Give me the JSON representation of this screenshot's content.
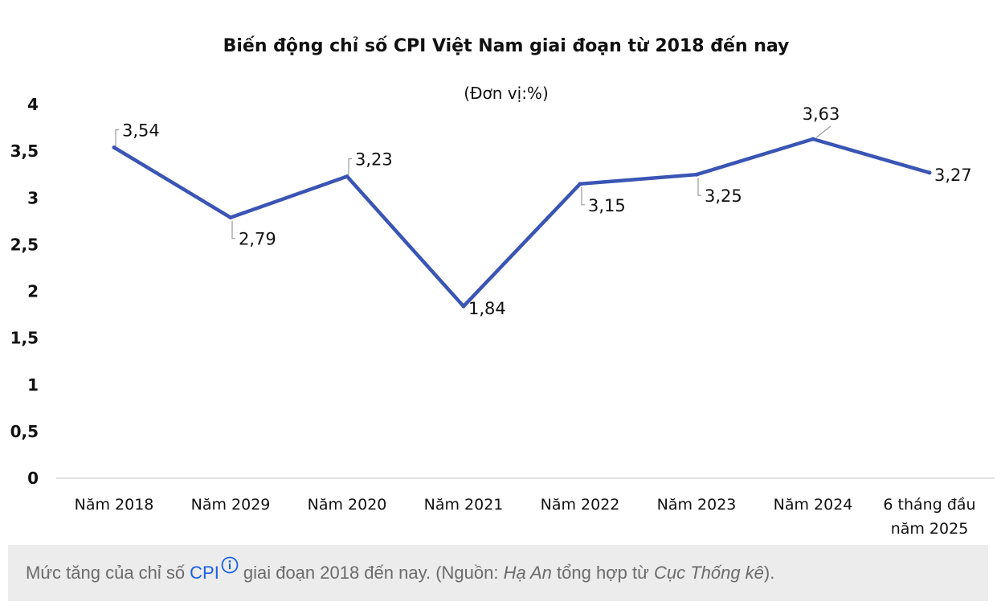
{
  "chart_data": {
    "type": "line",
    "title": "Biến động chỉ số CPI Việt Nam giai đoạn từ 2018 đến nay",
    "subtitle": "(Đơn vị:%)",
    "categories": [
      "Năm 2018",
      "Năm 2029",
      "Năm 2020",
      "Năm 2021",
      "Năm 2022",
      "Năm 2023",
      "Năm 2024",
      "6 tháng đầu năm 2025"
    ],
    "category_lines": [
      [
        "Năm 2018"
      ],
      [
        "Năm 2029"
      ],
      [
        "Năm 2020"
      ],
      [
        "Năm 2021"
      ],
      [
        "Năm 2022"
      ],
      [
        "Năm 2023"
      ],
      [
        "Năm 2024"
      ],
      [
        "6 tháng đầu",
        "năm 2025"
      ]
    ],
    "values": [
      3.54,
      2.79,
      3.23,
      1.84,
      3.15,
      3.25,
      3.63,
      3.27
    ],
    "data_labels": [
      "3,54",
      "2,79",
      "3,23",
      "1,84",
      "3,15",
      "3,25",
      "3,63",
      "3,27"
    ],
    "y_ticks": [
      0,
      0.5,
      1,
      1.5,
      2,
      2.5,
      3,
      3.5,
      4
    ],
    "y_tick_labels": [
      "0",
      "0,5",
      "1",
      "1,5",
      "2",
      "2,5",
      "3",
      "3,5",
      "4"
    ],
    "ylim": [
      0,
      4
    ],
    "grid": false,
    "line_color": "#3a55b4"
  },
  "caption": {
    "before": "Mức tăng của chỉ số",
    "link": "CPI",
    "icon": "info-circle-icon",
    "middle": "giai đoạn 2018 đến nay. (Nguồn:",
    "author": "Hạ An",
    "between": "tổng hợp từ",
    "source": "Cục Thống kê",
    "end": ")."
  }
}
